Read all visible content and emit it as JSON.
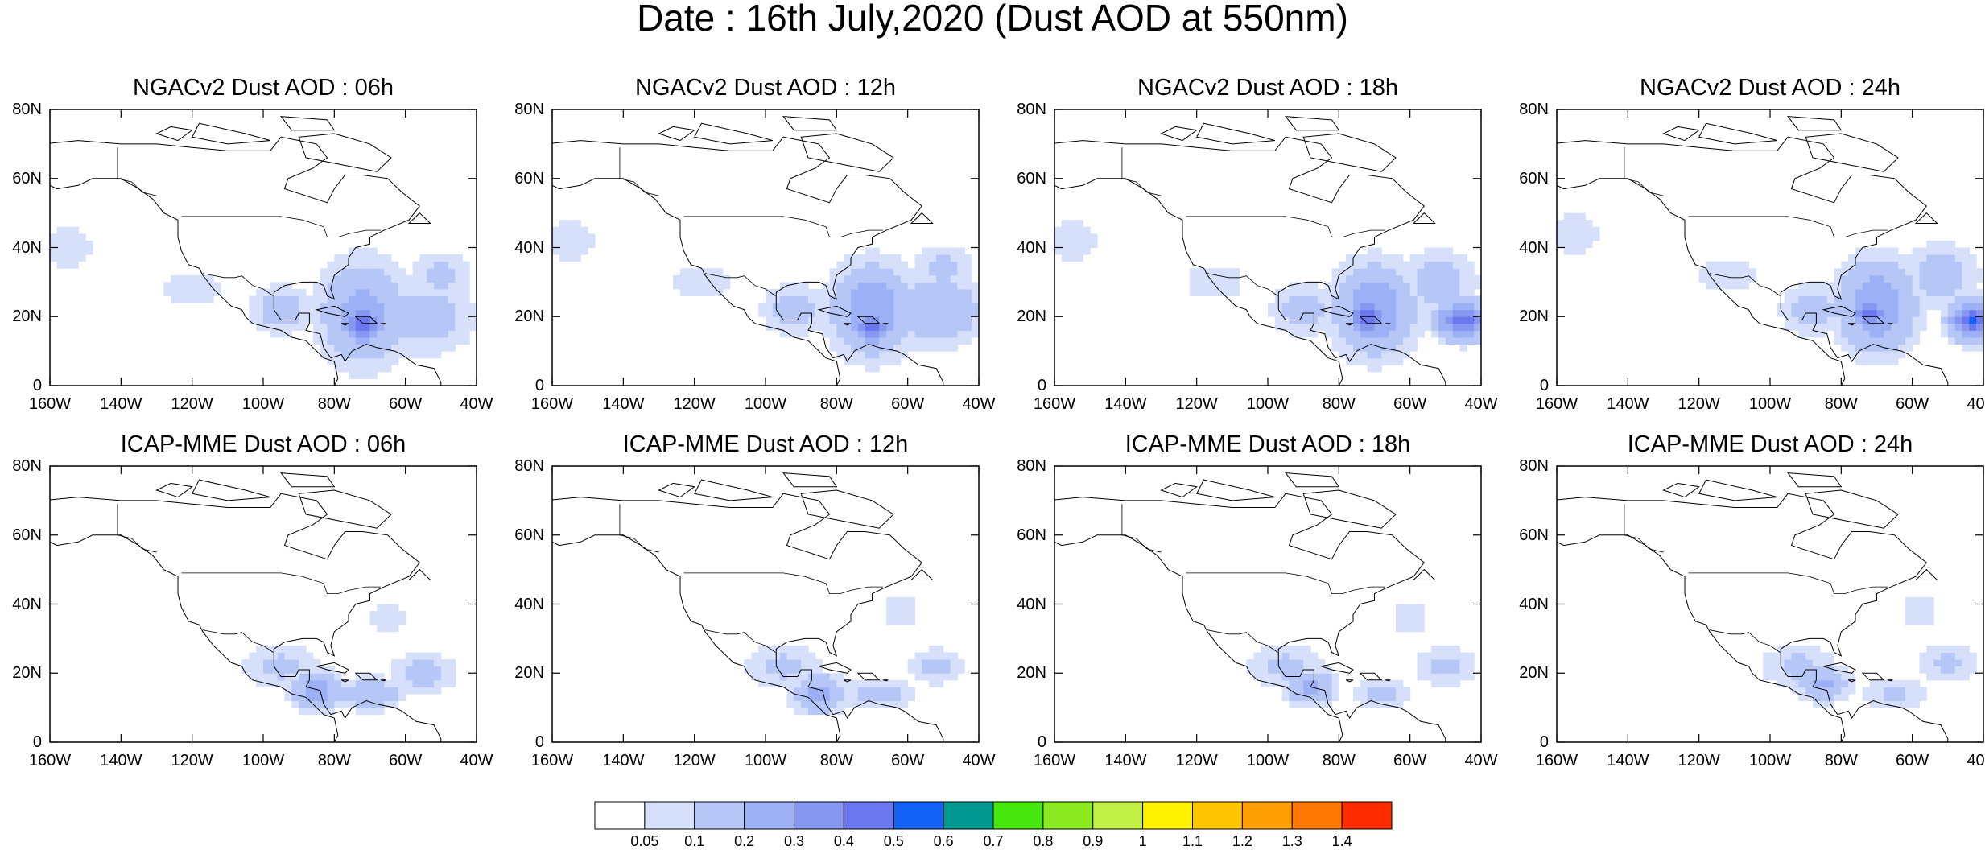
{
  "figure_title": "Date : 16th July,2020 (Dust AOD at 550nm)",
  "panel_titles": [
    "NGACv2 Dust AOD : 06h",
    "NGACv2 Dust AOD : 12h",
    "NGACv2 Dust AOD : 18h",
    "NGACv2 Dust AOD : 24h",
    "ICAP-MME Dust AOD : 06h",
    "ICAP-MME Dust AOD : 12h",
    "ICAP-MME Dust AOD : 18h",
    "ICAP-MME Dust AOD : 24h"
  ],
  "lat_ticks": [
    "80N",
    "60N",
    "40N",
    "20N",
    "0"
  ],
  "lon_ticks": [
    "160W",
    "140W",
    "120W",
    "100W",
    "80W",
    "60W",
    "40W"
  ],
  "colorbar": {
    "labels": [
      "0.05",
      "0.1",
      "0.2",
      "0.3",
      "0.4",
      "0.5",
      "0.6",
      "0.7",
      "0.8",
      "0.9",
      "1",
      "1.1",
      "1.2",
      "1.3",
      "1.4"
    ],
    "colors": [
      "#ffffff",
      "#d6e0fb",
      "#b5c6f7",
      "#9cb1f5",
      "#8597f1",
      "#6a77ee",
      "#1461f5",
      "#00998f",
      "#47e60d",
      "#8aea1f",
      "#c2f044",
      "#fff200",
      "#ffc500",
      "#ffa000",
      "#ff7600",
      "#ff2c00"
    ]
  },
  "chart_data": {
    "type": "heatmap",
    "variable": "Dust AOD at 550nm",
    "date": "16th July,2020",
    "grid": false,
    "xlim": [
      -160,
      -40
    ],
    "ylim": [
      0,
      80
    ],
    "xticks": [
      -160,
      -140,
      -120,
      -100,
      -80,
      -60,
      -40
    ],
    "yticks": [
      80,
      60,
      40,
      20,
      0
    ],
    "models": [
      "NGACv2",
      "ICAP-MME"
    ],
    "lead_times": [
      "06h",
      "12h",
      "18h",
      "24h"
    ],
    "levels": [
      0.05,
      0.1,
      0.2,
      0.3,
      0.4,
      0.5,
      0.6,
      0.7,
      0.8,
      0.9,
      1,
      1.1,
      1.2,
      1.3,
      1.4
    ],
    "panels": [
      {
        "model": "NGACv2",
        "lead": "06h",
        "features": [
          {
            "lon": -155,
            "lat": 40,
            "rlon": 12,
            "rlat": 12,
            "aod": 0.07
          },
          {
            "lon": -120,
            "lat": 28,
            "rlon": 14,
            "rlat": 9,
            "aod": 0.07
          },
          {
            "lon": -95,
            "lat": 22,
            "rlon": 10,
            "rlat": 8,
            "aod": 0.15
          },
          {
            "lon": -72,
            "lat": 21,
            "rlon": 13,
            "rlat": 16,
            "aod": 0.25
          },
          {
            "lon": -72,
            "lat": 18,
            "rlon": 7,
            "rlat": 7,
            "aod": 0.45
          },
          {
            "lon": -55,
            "lat": 20,
            "rlon": 16,
            "rlat": 12,
            "aod": 0.15
          },
          {
            "lon": -50,
            "lat": 32,
            "rlon": 10,
            "rlat": 8,
            "aod": 0.12
          }
        ]
      },
      {
        "model": "NGACv2",
        "lead": "12h",
        "features": [
          {
            "lon": -155,
            "lat": 42,
            "rlon": 12,
            "rlat": 12,
            "aod": 0.07
          },
          {
            "lon": -118,
            "lat": 30,
            "rlon": 14,
            "rlat": 9,
            "aod": 0.07
          },
          {
            "lon": -92,
            "lat": 22,
            "rlon": 10,
            "rlat": 8,
            "aod": 0.15
          },
          {
            "lon": -70,
            "lat": 22,
            "rlon": 12,
            "rlat": 14,
            "aod": 0.3
          },
          {
            "lon": -70,
            "lat": 17,
            "rlon": 7,
            "rlat": 6,
            "aod": 0.42
          },
          {
            "lon": -52,
            "lat": 22,
            "rlon": 15,
            "rlat": 11,
            "aod": 0.2
          },
          {
            "lon": -50,
            "lat": 34,
            "rlon": 10,
            "rlat": 8,
            "aod": 0.12
          }
        ]
      },
      {
        "model": "NGACv2",
        "lead": "18h",
        "features": [
          {
            "lon": -155,
            "lat": 42,
            "rlon": 12,
            "rlat": 12,
            "aod": 0.07
          },
          {
            "lon": -115,
            "lat": 30,
            "rlon": 15,
            "rlat": 9,
            "aod": 0.07
          },
          {
            "lon": -90,
            "lat": 22,
            "rlon": 10,
            "rlat": 8,
            "aod": 0.15
          },
          {
            "lon": -70,
            "lat": 22,
            "rlon": 12,
            "rlat": 14,
            "aod": 0.3
          },
          {
            "lon": -72,
            "lat": 20,
            "rlon": 6,
            "rlat": 6,
            "aod": 0.45
          },
          {
            "lon": -45,
            "lat": 19,
            "rlon": 8,
            "rlat": 6,
            "aod": 0.45
          },
          {
            "lon": -52,
            "lat": 30,
            "rlon": 12,
            "rlat": 10,
            "aod": 0.15
          }
        ]
      },
      {
        "model": "NGACv2",
        "lead": "24h",
        "features": [
          {
            "lon": -155,
            "lat": 44,
            "rlon": 12,
            "rlat": 12,
            "aod": 0.07
          },
          {
            "lon": -112,
            "lat": 32,
            "rlon": 15,
            "rlat": 9,
            "aod": 0.07
          },
          {
            "lon": -88,
            "lat": 22,
            "rlon": 10,
            "rlat": 8,
            "aod": 0.15
          },
          {
            "lon": -70,
            "lat": 23,
            "rlon": 12,
            "rlat": 14,
            "aod": 0.3
          },
          {
            "lon": -72,
            "lat": 21,
            "rlon": 6,
            "rlat": 6,
            "aod": 0.45
          },
          {
            "lon": -43,
            "lat": 19,
            "rlon": 7,
            "rlat": 6,
            "aod": 0.5
          },
          {
            "lon": -52,
            "lat": 32,
            "rlon": 12,
            "rlat": 10,
            "aod": 0.15
          }
        ]
      },
      {
        "model": "ICAP-MME",
        "lead": "06h",
        "features": [
          {
            "lon": -95,
            "lat": 22,
            "rlon": 12,
            "rlat": 8,
            "aod": 0.12
          },
          {
            "lon": -85,
            "lat": 15,
            "rlon": 8,
            "rlat": 6,
            "aod": 0.25
          },
          {
            "lon": -70,
            "lat": 14,
            "rlon": 10,
            "rlat": 5,
            "aod": 0.2
          },
          {
            "lon": -55,
            "lat": 20,
            "rlon": 10,
            "rlat": 6,
            "aod": 0.15
          },
          {
            "lon": -65,
            "lat": 36,
            "rlon": 8,
            "rlat": 6,
            "aod": 0.08
          }
        ]
      },
      {
        "model": "ICAP-MME",
        "lead": "12h",
        "features": [
          {
            "lon": -95,
            "lat": 22,
            "rlon": 12,
            "rlat": 8,
            "aod": 0.12
          },
          {
            "lon": -85,
            "lat": 14,
            "rlon": 8,
            "rlat": 6,
            "aod": 0.25
          },
          {
            "lon": -68,
            "lat": 14,
            "rlon": 10,
            "rlat": 5,
            "aod": 0.15
          },
          {
            "lon": -52,
            "lat": 22,
            "rlon": 10,
            "rlat": 6,
            "aod": 0.12
          },
          {
            "lon": -62,
            "lat": 38,
            "rlon": 8,
            "rlat": 6,
            "aod": 0.08
          }
        ]
      },
      {
        "model": "ICAP-MME",
        "lead": "18h",
        "features": [
          {
            "lon": -95,
            "lat": 22,
            "rlon": 12,
            "rlat": 8,
            "aod": 0.12
          },
          {
            "lon": -88,
            "lat": 16,
            "rlon": 8,
            "rlat": 6,
            "aod": 0.22
          },
          {
            "lon": -68,
            "lat": 14,
            "rlon": 10,
            "rlat": 5,
            "aod": 0.12
          },
          {
            "lon": -50,
            "lat": 22,
            "rlon": 10,
            "rlat": 7,
            "aod": 0.12
          },
          {
            "lon": -60,
            "lat": 36,
            "rlon": 8,
            "rlat": 6,
            "aod": 0.08
          }
        ]
      },
      {
        "model": "ICAP-MME",
        "lead": "24h",
        "features": [
          {
            "lon": -92,
            "lat": 22,
            "rlon": 12,
            "rlat": 8,
            "aod": 0.12
          },
          {
            "lon": -85,
            "lat": 17,
            "rlon": 8,
            "rlat": 6,
            "aod": 0.22
          },
          {
            "lon": -65,
            "lat": 14,
            "rlon": 10,
            "rlat": 5,
            "aod": 0.12
          },
          {
            "lon": -50,
            "lat": 23,
            "rlon": 10,
            "rlat": 7,
            "aod": 0.12
          },
          {
            "lon": -58,
            "lat": 38,
            "rlon": 8,
            "rlat": 6,
            "aod": 0.08
          }
        ]
      }
    ]
  }
}
